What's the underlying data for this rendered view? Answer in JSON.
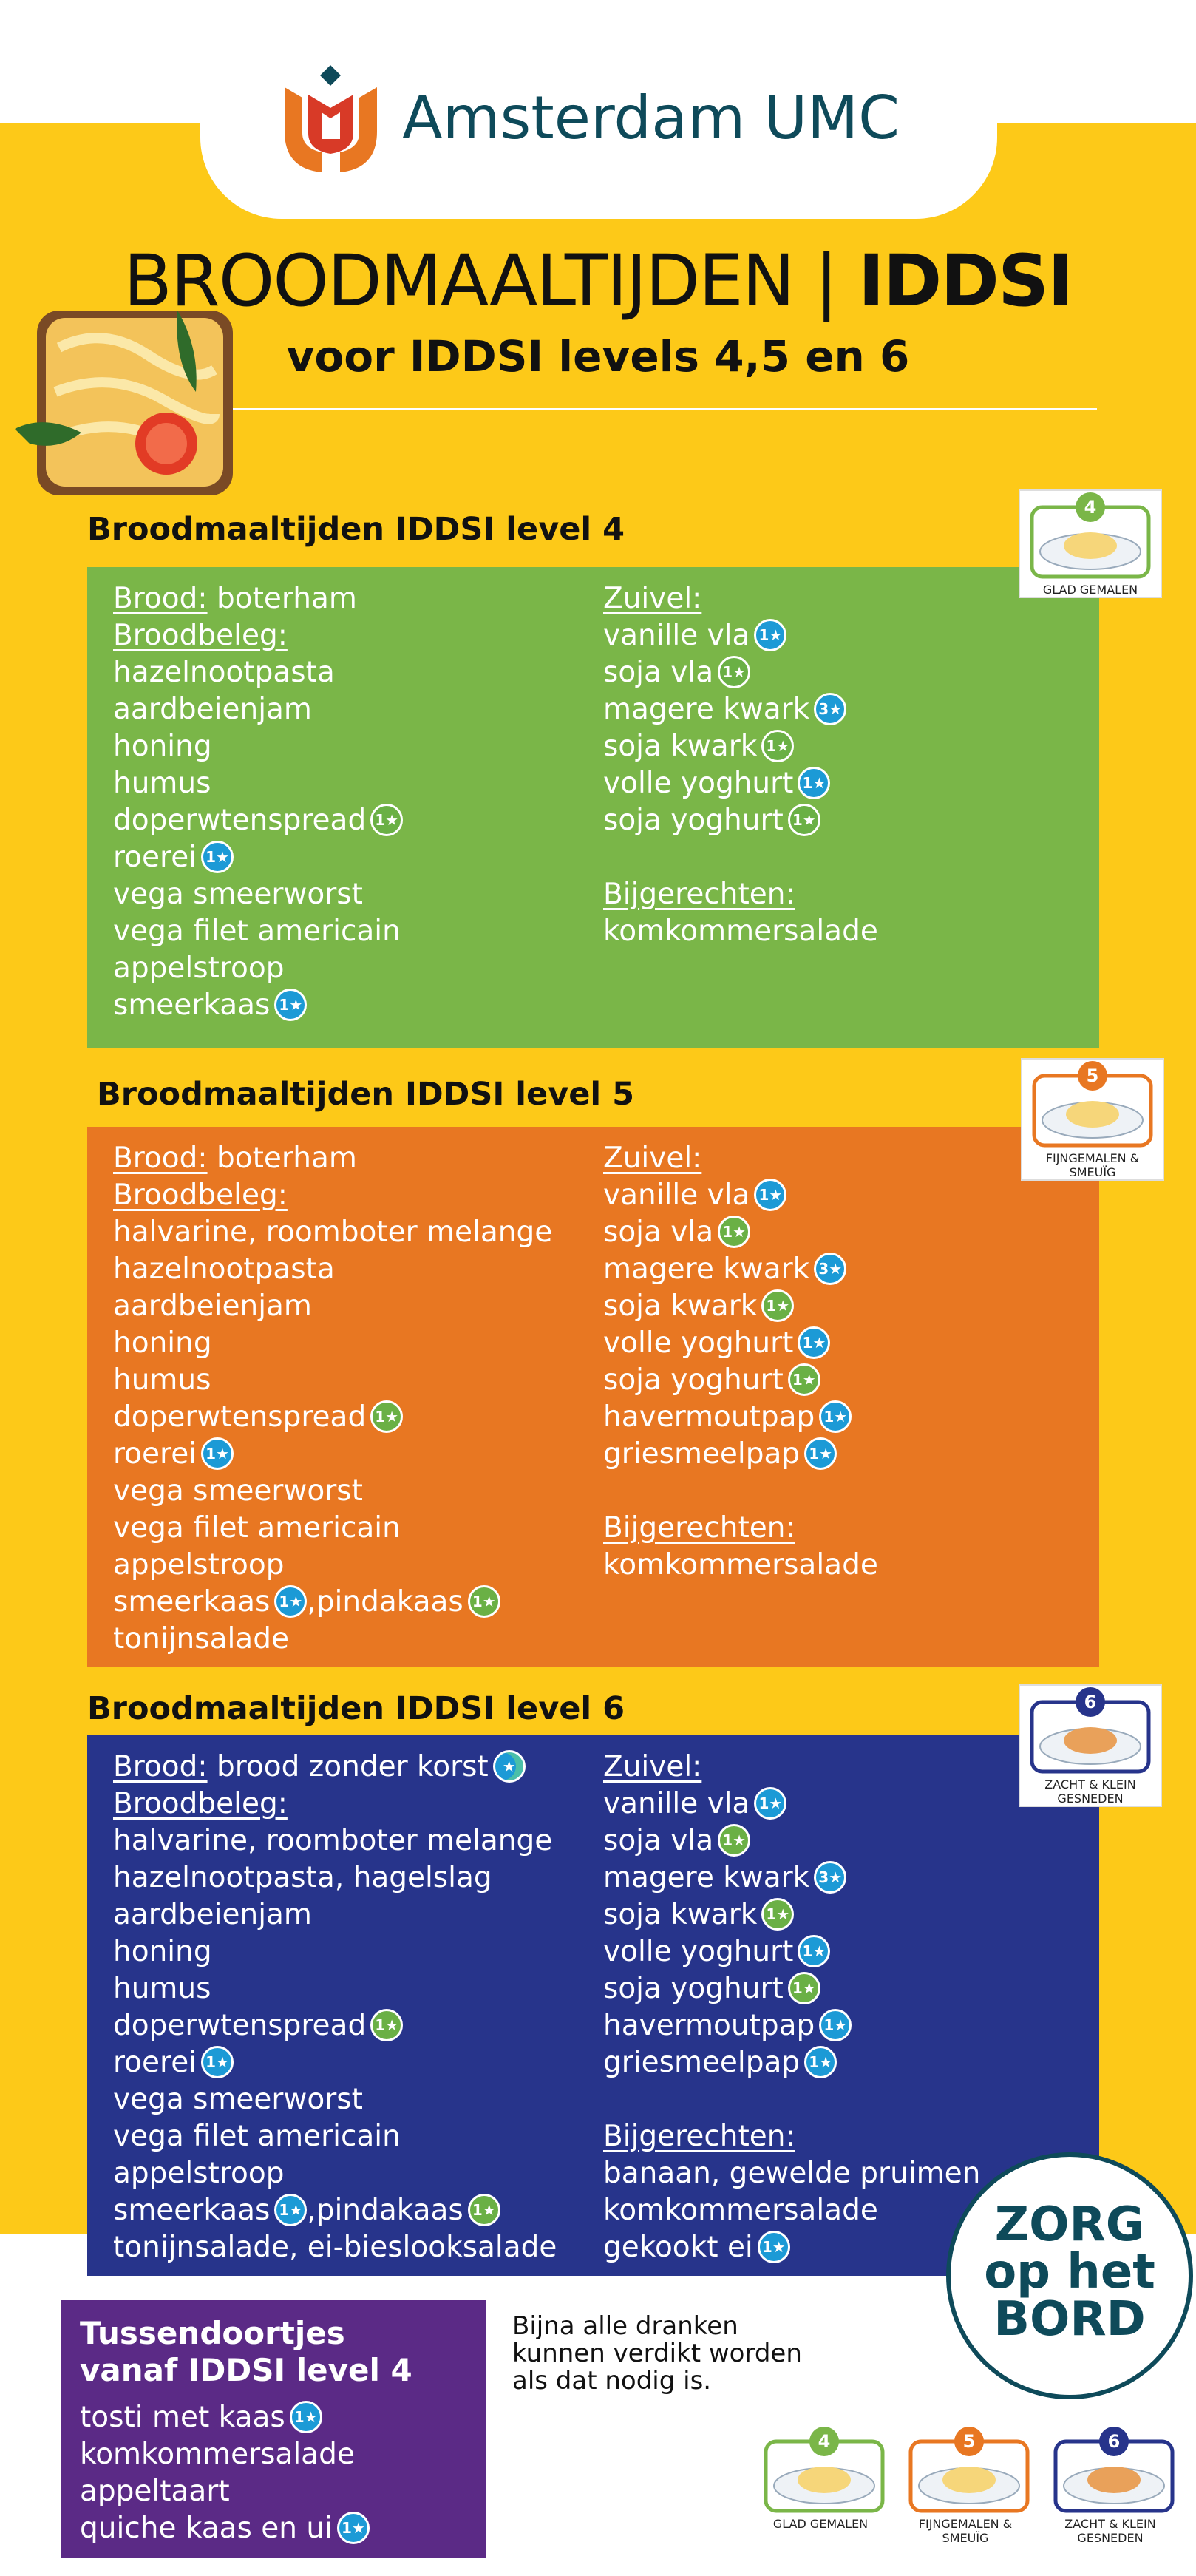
{
  "header": {
    "logo_text": "Amsterdam UMC",
    "title_light": "BROODMAALTIJDEN | ",
    "title_bold": "IDDSI",
    "subtitle": "voor IDDSI levels 4,5 en 6"
  },
  "sections": [
    {
      "heading": "Broodmaaltijden IDDSI level 4",
      "tone": "green",
      "card": {
        "number": "4",
        "caption": "GLAD GEMALEN"
      },
      "left": [
        {
          "heading": "Brood:",
          "parts": [
            "boterham"
          ]
        },
        {
          "heading": "Broodbeleg:",
          "items": [
            [
              "hazelnootpasta"
            ],
            [
              "aardbeienjam"
            ],
            [
              "honing"
            ],
            [
              "humus"
            ],
            [
              "doperwtenspread",
              {
                "badge": "1★",
                "tone": "green"
              }
            ],
            [
              "roerei",
              {
                "badge": "1★",
                "tone": "blue"
              }
            ],
            [
              "vega smeerworst"
            ],
            [
              "vega filet americain"
            ],
            [
              "appelstroop"
            ],
            [
              "smeerkaas",
              {
                "badge": "1★",
                "tone": "blue"
              }
            ]
          ]
        }
      ],
      "right": [
        {
          "heading": "Zuivel:",
          "items": [
            [
              "vanille vla",
              {
                "badge": "1★",
                "tone": "blue"
              }
            ],
            [
              "soja vla",
              {
                "badge": "1★",
                "tone": "green"
              }
            ],
            [
              "magere kwark",
              {
                "badge": "3★",
                "tone": "blue"
              }
            ],
            [
              "soja kwark",
              {
                "badge": "1★",
                "tone": "green"
              }
            ],
            [
              "volle yoghurt",
              {
                "badge": "1★",
                "tone": "blue"
              }
            ],
            [
              "soja yoghurt",
              {
                "badge": "1★",
                "tone": "green"
              }
            ]
          ]
        },
        {
          "heading": "Bijgerechten:",
          "items": [
            [
              "komkommersalade"
            ]
          ]
        }
      ]
    },
    {
      "heading": "Broodmaaltijden IDDSI level 5",
      "tone": "orange",
      "card": {
        "number": "5",
        "caption": "FIJNGEMALEN & SMEUÏG"
      },
      "left": [
        {
          "heading": "Brood:",
          "parts": [
            "boterham"
          ]
        },
        {
          "heading": "Broodbeleg:",
          "items": [
            [
              "halvarine, roomboter melange"
            ],
            [
              "hazelnootpasta"
            ],
            [
              "aardbeienjam"
            ],
            [
              "honing"
            ],
            [
              "humus"
            ],
            [
              "doperwtenspread",
              {
                "badge": "1★",
                "tone": "green"
              }
            ],
            [
              "roerei",
              {
                "badge": "1★",
                "tone": "blue"
              }
            ],
            [
              "vega smeerworst"
            ],
            [
              "vega filet americain"
            ],
            [
              "appelstroop"
            ],
            [
              "smeerkaas",
              {
                "badge": "1★",
                "tone": "blue"
              },
              ",pindakaas",
              {
                "badge": "1★",
                "tone": "green"
              }
            ],
            [
              "tonijnsalade"
            ]
          ]
        }
      ],
      "right": [
        {
          "heading": "Zuivel:",
          "items": [
            [
              "vanille vla",
              {
                "badge": "1★",
                "tone": "blue"
              }
            ],
            [
              "soja vla",
              {
                "badge": "1★",
                "tone": "green"
              }
            ],
            [
              "magere kwark",
              {
                "badge": "3★",
                "tone": "blue"
              }
            ],
            [
              "soja kwark",
              {
                "badge": "1★",
                "tone": "green"
              }
            ],
            [
              "volle yoghurt",
              {
                "badge": "1★",
                "tone": "blue"
              }
            ],
            [
              "soja yoghurt",
              {
                "badge": "1★",
                "tone": "green"
              }
            ],
            [
              "havermoutpap",
              {
                "badge": "1★",
                "tone": "blue"
              }
            ],
            [
              "griesmeelpap",
              {
                "badge": "1★",
                "tone": "blue"
              }
            ]
          ]
        },
        {
          "heading": "Bijgerechten:",
          "items": [
            [
              "komkommersalade"
            ]
          ]
        }
      ]
    },
    {
      "heading": "Broodmaaltijden IDDSI level 6",
      "tone": "navy",
      "card": {
        "number": "6",
        "caption": "ZACHT & KLEIN GESNEDEN"
      },
      "left": [
        {
          "heading": "Brood:",
          "parts": [
            "brood zonder korst",
            {
              "badge": "★",
              "tone": "teal"
            }
          ]
        },
        {
          "heading": "Broodbeleg:",
          "items": [
            [
              "halvarine, roomboter melange"
            ],
            [
              "hazelnootpasta, hagelslag"
            ],
            [
              "aardbeienjam"
            ],
            [
              "honing"
            ],
            [
              "humus"
            ],
            [
              "doperwtenspread",
              {
                "badge": "1★",
                "tone": "green"
              }
            ],
            [
              "roerei",
              {
                "badge": "1★",
                "tone": "blue"
              }
            ],
            [
              "vega smeerworst"
            ],
            [
              "vega filet americain"
            ],
            [
              "appelstroop"
            ],
            [
              "smeerkaas",
              {
                "badge": "1★",
                "tone": "blue"
              },
              ",pindakaas",
              {
                "badge": "1★",
                "tone": "green"
              }
            ],
            [
              "tonijnsalade, ei-bieslooksalade"
            ]
          ]
        }
      ],
      "right": [
        {
          "heading": "Zuivel:",
          "items": [
            [
              "vanille vla",
              {
                "badge": "1★",
                "tone": "blue"
              }
            ],
            [
              "soja vla",
              {
                "badge": "1★",
                "tone": "green"
              }
            ],
            [
              "magere kwark",
              {
                "badge": "3★",
                "tone": "blue"
              }
            ],
            [
              "soja kwark",
              {
                "badge": "1★",
                "tone": "green"
              }
            ],
            [
              "volle yoghurt",
              {
                "badge": "1★",
                "tone": "blue"
              }
            ],
            [
              "soja yoghurt",
              {
                "badge": "1★",
                "tone": "green"
              }
            ],
            [
              "havermoutpap",
              {
                "badge": "1★",
                "tone": "blue"
              }
            ],
            [
              "griesmeelpap",
              {
                "badge": "1★",
                "tone": "blue"
              }
            ]
          ]
        },
        {
          "heading": "Bijgerechten:",
          "items": [
            [
              "banaan, gewelde pruimen"
            ],
            [
              "komkommersalade"
            ],
            [
              "gekookt ei",
              {
                "badge": "1★",
                "tone": "blue"
              }
            ]
          ]
        }
      ]
    }
  ],
  "snacks": {
    "title": [
      "Tussendoortjes",
      "vanaf IDDSI level 4"
    ],
    "items": [
      [
        "tosti met kaas",
        {
          "badge": "1★",
          "tone": "blue"
        }
      ],
      [
        "komkommersalade"
      ],
      [
        "appeltaart"
      ],
      [
        "quiche kaas en ui",
        {
          "badge": "1★",
          "tone": "blue"
        }
      ]
    ]
  },
  "note": [
    "Bijna alle dranken",
    "kunnen verdikt worden",
    "als dat nodig is."
  ],
  "stamp": [
    "ZORG",
    "op het",
    "BORD"
  ],
  "footer_cards": [
    {
      "number": "4",
      "caption": "GLAD GEMALEN",
      "tone": "green"
    },
    {
      "number": "5",
      "caption": "FIJNGEMALEN & SMEUÏG",
      "tone": "orange"
    },
    {
      "number": "6",
      "caption": "ZACHT & KLEIN GESNEDEN",
      "tone": "navy"
    }
  ]
}
